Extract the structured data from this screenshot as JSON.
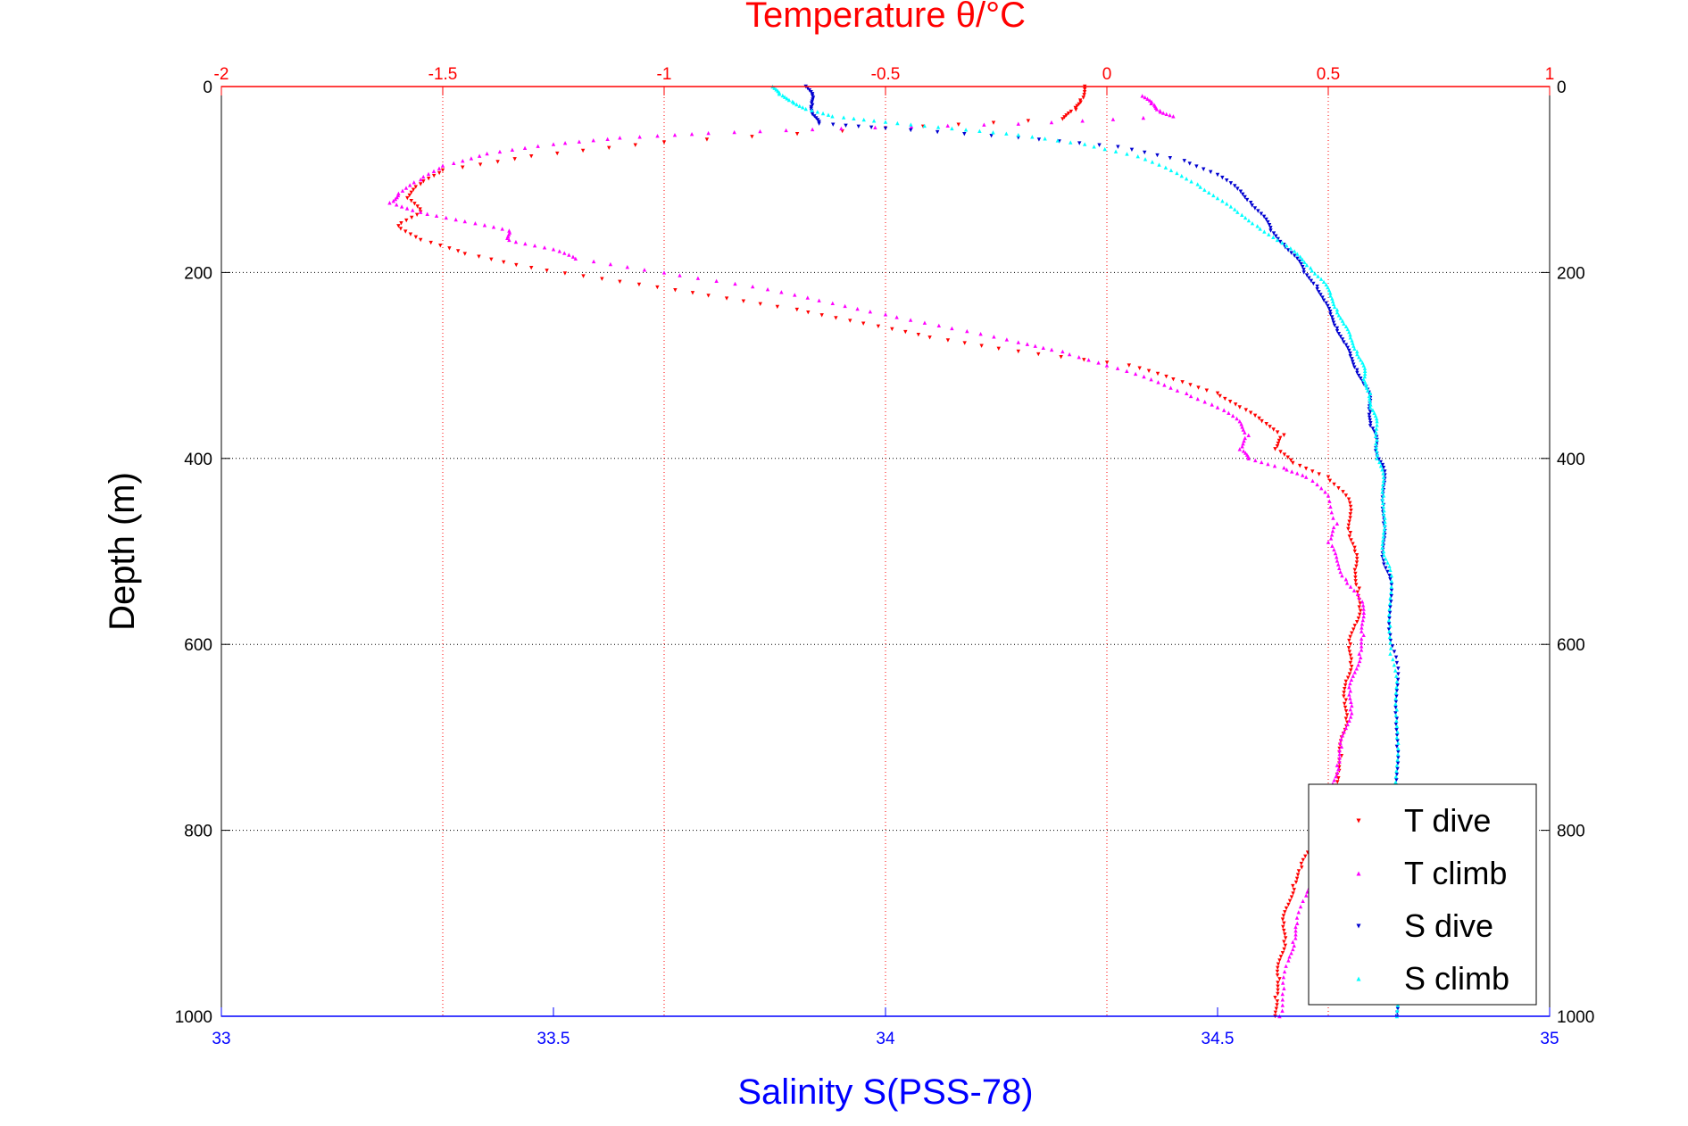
{
  "chart_data": {
    "type": "scatter",
    "top_axis": {
      "label": "Temperature θ/°C",
      "range": [
        -2,
        1
      ],
      "ticks": [
        -2,
        -1.5,
        -1,
        -0.5,
        0,
        0.5,
        1
      ],
      "tick_labels": [
        "-2",
        "-1.5",
        "-1",
        "-0.5",
        "0",
        "0.5",
        "1"
      ],
      "color": "#ff0000",
      "grid": true
    },
    "bottom_axis": {
      "label": "Salinity S(PSS-78)",
      "range": [
        33,
        35
      ],
      "ticks": [
        33,
        33.5,
        34,
        34.5,
        35
      ],
      "tick_labels": [
        "33",
        "33.5",
        "34",
        "34.5",
        "35"
      ],
      "color": "#0000ff"
    },
    "y_axis": {
      "label": "Depth (m)",
      "range": [
        0,
        1000
      ],
      "reversed": true,
      "ticks": [
        0,
        200,
        400,
        600,
        800,
        1000
      ],
      "tick_labels": [
        "0",
        "200",
        "400",
        "600",
        "800",
        "1000"
      ],
      "grid": true
    },
    "legend": {
      "placement": "bottom-right"
    },
    "series": [
      {
        "name": "T dive",
        "axis": "temperature",
        "color": "#ff0000",
        "marker": "triangle-down",
        "points": [
          [
            -0.05,
            0
          ],
          [
            -0.06,
            15
          ],
          [
            -0.07,
            25
          ],
          [
            -0.1,
            35
          ],
          [
            -0.5,
            45
          ],
          [
            -1.0,
            60
          ],
          [
            -1.3,
            75
          ],
          [
            -1.5,
            90
          ],
          [
            -1.55,
            105
          ],
          [
            -1.58,
            120
          ],
          [
            -1.55,
            135
          ],
          [
            -1.6,
            150
          ],
          [
            -1.55,
            165
          ],
          [
            -1.45,
            180
          ],
          [
            -1.3,
            195
          ],
          [
            -1.1,
            210
          ],
          [
            -0.9,
            225
          ],
          [
            -0.7,
            240
          ],
          [
            -0.55,
            255
          ],
          [
            -0.4,
            270
          ],
          [
            -0.2,
            285
          ],
          [
            0.05,
            300
          ],
          [
            0.15,
            315
          ],
          [
            0.25,
            330
          ],
          [
            0.3,
            345
          ],
          [
            0.35,
            360
          ],
          [
            0.4,
            375
          ],
          [
            0.38,
            390
          ],
          [
            0.42,
            405
          ],
          [
            0.5,
            420
          ],
          [
            0.54,
            440
          ],
          [
            0.55,
            460
          ],
          [
            0.55,
            480
          ],
          [
            0.56,
            500
          ],
          [
            0.56,
            520
          ],
          [
            0.57,
            540
          ],
          [
            0.57,
            560
          ],
          [
            0.56,
            580
          ],
          [
            0.55,
            600
          ],
          [
            0.55,
            620
          ],
          [
            0.54,
            640
          ],
          [
            0.54,
            660
          ],
          [
            0.54,
            680
          ],
          [
            0.53,
            700
          ],
          [
            0.53,
            720
          ],
          [
            0.52,
            740
          ],
          [
            0.51,
            760
          ],
          [
            0.5,
            780
          ],
          [
            0.48,
            800
          ],
          [
            0.46,
            820
          ],
          [
            0.44,
            840
          ],
          [
            0.42,
            860
          ],
          [
            0.41,
            880
          ],
          [
            0.4,
            900
          ],
          [
            0.4,
            920
          ],
          [
            0.39,
            940
          ],
          [
            0.39,
            960
          ],
          [
            0.38,
            980
          ],
          [
            0.38,
            1000
          ]
        ]
      },
      {
        "name": "T climb",
        "axis": "temperature",
        "color": "#ff00ff",
        "marker": "triangle-up",
        "points": [
          [
            0.08,
            10
          ],
          [
            0.1,
            18
          ],
          [
            0.12,
            26
          ],
          [
            0.15,
            32
          ],
          [
            -0.2,
            40
          ],
          [
            -0.6,
            45
          ],
          [
            -0.9,
            50
          ],
          [
            -1.1,
            55
          ],
          [
            -1.25,
            62
          ],
          [
            -1.4,
            72
          ],
          [
            -1.5,
            85
          ],
          [
            -1.55,
            100
          ],
          [
            -1.6,
            115
          ],
          [
            -1.62,
            125
          ],
          [
            -1.55,
            135
          ],
          [
            -1.45,
            145
          ],
          [
            -1.35,
            155
          ],
          [
            -1.35,
            165
          ],
          [
            -1.25,
            175
          ],
          [
            -1.2,
            185
          ],
          [
            -1.0,
            200
          ],
          [
            -0.8,
            215
          ],
          [
            -0.65,
            230
          ],
          [
            -0.5,
            245
          ],
          [
            -0.35,
            260
          ],
          [
            -0.2,
            275
          ],
          [
            -0.1,
            285
          ],
          [
            0.0,
            300
          ],
          [
            0.1,
            315
          ],
          [
            0.18,
            330
          ],
          [
            0.25,
            345
          ],
          [
            0.3,
            360
          ],
          [
            0.32,
            375
          ],
          [
            0.3,
            390
          ],
          [
            0.32,
            400
          ],
          [
            0.4,
            410
          ],
          [
            0.45,
            420
          ],
          [
            0.5,
            440
          ],
          [
            0.52,
            470
          ],
          [
            0.5,
            490
          ],
          [
            0.52,
            510
          ],
          [
            0.54,
            530
          ],
          [
            0.57,
            550
          ],
          [
            0.58,
            570
          ],
          [
            0.58,
            590
          ],
          [
            0.57,
            610
          ],
          [
            0.56,
            630
          ],
          [
            0.55,
            650
          ],
          [
            0.55,
            670
          ],
          [
            0.54,
            690
          ],
          [
            0.53,
            710
          ],
          [
            0.52,
            730
          ],
          [
            0.51,
            750
          ],
          [
            0.5,
            770
          ],
          [
            0.49,
            790
          ],
          [
            0.48,
            810
          ],
          [
            0.47,
            830
          ],
          [
            0.46,
            850
          ],
          [
            0.45,
            870
          ],
          [
            0.43,
            900
          ],
          [
            0.42,
            920
          ],
          [
            0.41,
            940
          ],
          [
            0.4,
            970
          ],
          [
            0.39,
            1000
          ]
        ]
      },
      {
        "name": "S dive",
        "axis": "salinity",
        "color": "#0000d0",
        "marker": "triangle-down",
        "points": [
          [
            33.88,
            0
          ],
          [
            33.89,
            10
          ],
          [
            33.89,
            20
          ],
          [
            33.89,
            30
          ],
          [
            33.9,
            40
          ],
          [
            34.0,
            45
          ],
          [
            34.2,
            55
          ],
          [
            34.35,
            65
          ],
          [
            34.45,
            80
          ],
          [
            34.5,
            95
          ],
          [
            34.53,
            110
          ],
          [
            34.55,
            125
          ],
          [
            34.57,
            140
          ],
          [
            34.58,
            155
          ],
          [
            34.6,
            170
          ],
          [
            34.62,
            185
          ],
          [
            34.63,
            200
          ],
          [
            34.65,
            215
          ],
          [
            34.66,
            230
          ],
          [
            34.67,
            245
          ],
          [
            34.68,
            260
          ],
          [
            34.69,
            275
          ],
          [
            34.7,
            290
          ],
          [
            34.71,
            305
          ],
          [
            34.72,
            320
          ],
          [
            34.73,
            335
          ],
          [
            34.73,
            350
          ],
          [
            34.73,
            365
          ],
          [
            34.74,
            380
          ],
          [
            34.74,
            395
          ],
          [
            34.75,
            410
          ],
          [
            34.75,
            430
          ],
          [
            34.75,
            450
          ],
          [
            34.75,
            470
          ],
          [
            34.75,
            490
          ],
          [
            34.75,
            510
          ],
          [
            34.76,
            530
          ],
          [
            34.76,
            560
          ],
          [
            34.76,
            590
          ],
          [
            34.77,
            620
          ],
          [
            34.77,
            650
          ],
          [
            34.77,
            680
          ],
          [
            34.77,
            710
          ],
          [
            34.77,
            740
          ],
          [
            34.77,
            770
          ],
          [
            34.77,
            800
          ],
          [
            34.77,
            830
          ],
          [
            34.77,
            860
          ],
          [
            34.77,
            890
          ],
          [
            34.77,
            920
          ],
          [
            34.77,
            950
          ],
          [
            34.77,
            980
          ],
          [
            34.77,
            1000
          ]
        ]
      },
      {
        "name": "S climb",
        "axis": "salinity",
        "color": "#00ffff",
        "marker": "triangle-up",
        "points": [
          [
            33.83,
            0
          ],
          [
            33.84,
            8
          ],
          [
            33.86,
            16
          ],
          [
            33.88,
            24
          ],
          [
            33.92,
            32
          ],
          [
            34.0,
            38
          ],
          [
            34.1,
            45
          ],
          [
            34.2,
            52
          ],
          [
            34.3,
            62
          ],
          [
            34.38,
            75
          ],
          [
            34.43,
            90
          ],
          [
            34.47,
            105
          ],
          [
            34.5,
            120
          ],
          [
            34.53,
            135
          ],
          [
            34.56,
            150
          ],
          [
            34.59,
            165
          ],
          [
            34.62,
            180
          ],
          [
            34.64,
            195
          ],
          [
            34.66,
            210
          ],
          [
            34.67,
            225
          ],
          [
            34.68,
            240
          ],
          [
            34.69,
            255
          ],
          [
            34.7,
            270
          ],
          [
            34.71,
            285
          ],
          [
            34.72,
            300
          ],
          [
            34.72,
            315
          ],
          [
            34.73,
            330
          ],
          [
            34.73,
            345
          ],
          [
            34.74,
            360
          ],
          [
            34.74,
            380
          ],
          [
            34.74,
            400
          ],
          [
            34.75,
            420
          ],
          [
            34.75,
            440
          ],
          [
            34.75,
            460
          ],
          [
            34.75,
            480
          ],
          [
            34.75,
            500
          ],
          [
            34.76,
            520
          ],
          [
            34.76,
            550
          ],
          [
            34.76,
            580
          ],
          [
            34.76,
            610
          ],
          [
            34.77,
            640
          ],
          [
            34.77,
            670
          ],
          [
            34.77,
            700
          ],
          [
            34.77,
            730
          ],
          [
            34.77,
            760
          ],
          [
            34.77,
            790
          ],
          [
            34.77,
            820
          ],
          [
            34.77,
            850
          ],
          [
            34.77,
            880
          ],
          [
            34.77,
            910
          ],
          [
            34.77,
            940
          ],
          [
            34.77,
            970
          ],
          [
            34.77,
            1000
          ]
        ]
      }
    ]
  }
}
